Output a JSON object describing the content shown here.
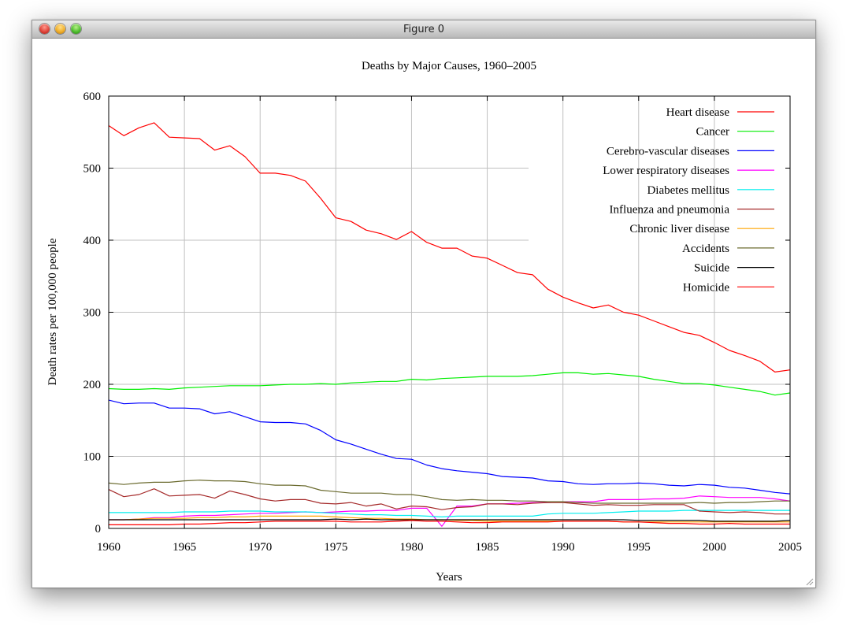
{
  "window": {
    "title": "Figure 0"
  },
  "colors": {
    "heart": "#ff0000",
    "cancer": "#00ee00",
    "cerebro": "#0000ff",
    "lower_resp": "#ff00ff",
    "diabetes": "#00eeee",
    "influenza": "#a52a2a",
    "liver": "#ffa500",
    "accidents": "#6b6b2f",
    "suicide": "#000000",
    "homicide": "#ff0000",
    "grid": "#c0c0c0"
  },
  "chart_data": {
    "type": "line",
    "title": "Deaths by Major Causes, 1960–2005",
    "xlabel": "Years",
    "ylabel": "Death rates per 100,000 people",
    "xlim": [
      1960,
      2005
    ],
    "ylim": [
      0,
      600
    ],
    "xticks": [
      1960,
      1965,
      1970,
      1975,
      1980,
      1985,
      1990,
      1995,
      2000,
      2005
    ],
    "yticks": [
      0,
      100,
      200,
      300,
      400,
      500,
      600
    ],
    "grid": true,
    "legend_position": "top-right",
    "x": [
      1960,
      1961,
      1962,
      1963,
      1964,
      1965,
      1966,
      1967,
      1968,
      1969,
      1970,
      1971,
      1972,
      1973,
      1974,
      1975,
      1976,
      1977,
      1978,
      1979,
      1980,
      1981,
      1982,
      1983,
      1984,
      1985,
      1986,
      1987,
      1988,
      1989,
      1990,
      1991,
      1992,
      1993,
      1994,
      1995,
      1996,
      1997,
      1998,
      1999,
      2000,
      2001,
      2002,
      2003,
      2004,
      2005
    ],
    "series": [
      {
        "name": "Heart disease",
        "color_key": "heart",
        "values": [
          559,
          545,
          556,
          563,
          543,
          542,
          541,
          525,
          531,
          516,
          493,
          493,
          490,
          482,
          458,
          431,
          426,
          414,
          409,
          401,
          412,
          397,
          389,
          389,
          378,
          375,
          365,
          355,
          352,
          332,
          321,
          313,
          306,
          310,
          300,
          296,
          288,
          280,
          272,
          268,
          258,
          247,
          240,
          232,
          217,
          220
        ]
      },
      {
        "name": "Cancer",
        "color_key": "cancer",
        "values": [
          194,
          193,
          193,
          194,
          193,
          195,
          196,
          197,
          198,
          198,
          198,
          199,
          200,
          200,
          201,
          200,
          202,
          203,
          204,
          204,
          207,
          206,
          208,
          209,
          210,
          211,
          211,
          211,
          212,
          214,
          216,
          216,
          214,
          215,
          213,
          211,
          207,
          204,
          201,
          201,
          199,
          196,
          193,
          190,
          185,
          188
        ]
      },
      {
        "name": "Cerebro-vascular diseases",
        "color_key": "cerebro",
        "values": [
          178,
          173,
          174,
          174,
          167,
          167,
          166,
          159,
          162,
          155,
          148,
          147,
          147,
          145,
          136,
          123,
          117,
          110,
          103,
          97,
          96,
          88,
          83,
          80,
          78,
          76,
          72,
          71,
          70,
          66,
          65,
          62,
          61,
          62,
          62,
          63,
          62,
          60,
          59,
          61,
          60,
          57,
          56,
          53,
          50,
          48
        ]
      },
      {
        "name": "Lower respiratory diseases",
        "color_key": "lower_resp",
        "values": [
          12,
          12,
          13,
          15,
          15,
          17,
          18,
          18,
          19,
          20,
          21,
          21,
          22,
          23,
          22,
          23,
          24,
          24,
          25,
          25,
          28,
          28,
          3,
          31,
          31,
          34,
          34,
          35,
          36,
          36,
          37,
          37,
          37,
          40,
          40,
          40,
          41,
          41,
          42,
          45,
          44,
          43,
          43,
          43,
          41,
          38
        ]
      },
      {
        "name": "Diabetes mellitus",
        "color_key": "diabetes",
        "values": [
          22,
          22,
          22,
          22,
          22,
          23,
          23,
          23,
          24,
          24,
          24,
          23,
          23,
          23,
          22,
          21,
          20,
          19,
          19,
          18,
          18,
          17,
          16,
          17,
          17,
          17,
          17,
          17,
          17,
          20,
          21,
          21,
          21,
          22,
          23,
          24,
          24,
          24,
          25,
          25,
          25,
          25,
          25,
          25,
          25,
          25
        ]
      },
      {
        "name": "Influenza and pneumonia",
        "color_key": "influenza",
        "values": [
          54,
          44,
          47,
          55,
          45,
          46,
          47,
          42,
          52,
          47,
          41,
          38,
          40,
          40,
          35,
          34,
          36,
          31,
          34,
          27,
          31,
          30,
          26,
          29,
          30,
          34,
          34,
          33,
          35,
          36,
          36,
          34,
          32,
          33,
          32,
          32,
          33,
          33,
          33,
          24,
          23,
          22,
          23,
          22,
          20,
          20
        ]
      },
      {
        "name": "Chronic liver disease",
        "color_key": "liver",
        "values": [
          12,
          12,
          13,
          14,
          14,
          14,
          15,
          15,
          16,
          16,
          17,
          17,
          17,
          17,
          17,
          16,
          15,
          14,
          14,
          13,
          13,
          12,
          12,
          11,
          11,
          10,
          10,
          10,
          10,
          10,
          10,
          10,
          10,
          10,
          9,
          9,
          9,
          9,
          9,
          9,
          9,
          9,
          9,
          9,
          9,
          9
        ]
      },
      {
        "name": "Accidents",
        "color_key": "accidents",
        "values": [
          63,
          61,
          63,
          64,
          64,
          66,
          67,
          66,
          66,
          65,
          62,
          60,
          60,
          59,
          53,
          51,
          49,
          49,
          49,
          47,
          47,
          44,
          40,
          39,
          40,
          39,
          39,
          38,
          38,
          37,
          37,
          36,
          35,
          35,
          35,
          35,
          35,
          35,
          35,
          36,
          35,
          36,
          36,
          37,
          38,
          38
        ]
      },
      {
        "name": "Suicide",
        "color_key": "suicide",
        "values": [
          12,
          12,
          12,
          12,
          12,
          12,
          12,
          12,
          12,
          12,
          12,
          12,
          12,
          12,
          12,
          13,
          12,
          13,
          12,
          12,
          12,
          12,
          12,
          12,
          12,
          12,
          12,
          12,
          12,
          12,
          12,
          12,
          12,
          12,
          12,
          11,
          11,
          11,
          11,
          11,
          10,
          10,
          10,
          10,
          10,
          11
        ]
      },
      {
        "name": "Homicide",
        "color_key": "homicide",
        "values": [
          5,
          5,
          5,
          5,
          5,
          6,
          6,
          7,
          8,
          8,
          9,
          10,
          10,
          10,
          10,
          10,
          9,
          9,
          9,
          10,
          11,
          10,
          10,
          9,
          8,
          8,
          9,
          9,
          9,
          9,
          10,
          10,
          10,
          10,
          9,
          9,
          8,
          7,
          7,
          6,
          6,
          7,
          6,
          6,
          6,
          6
        ]
      }
    ]
  }
}
